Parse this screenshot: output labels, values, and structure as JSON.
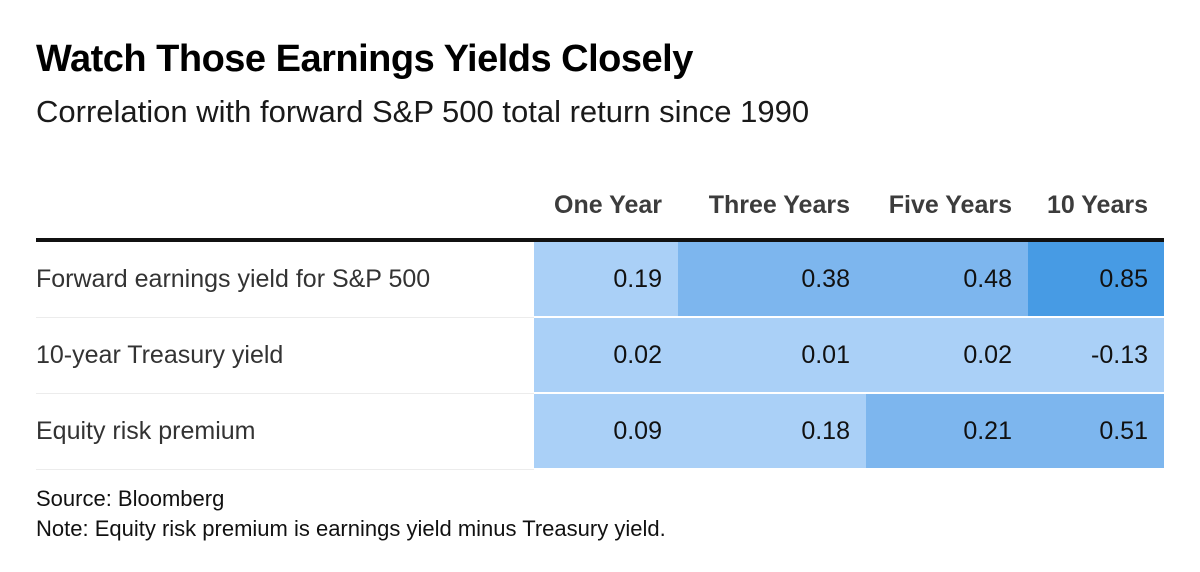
{
  "chart_data": {
    "type": "table",
    "title": "Watch Those Earnings Yields Closely",
    "subtitle": "Correlation with forward S&P 500 total return since 1990",
    "columns": [
      "One Year",
      "Three Years",
      "Five Years",
      "10 Years"
    ],
    "rows": [
      {
        "label": "Forward earnings yield for S&P 500",
        "values": [
          "0.19",
          "0.38",
          "0.48",
          "0.85"
        ]
      },
      {
        "label": "10-year Treasury yield",
        "values": [
          "0.02",
          "0.01",
          "0.02",
          "-0.13"
        ]
      },
      {
        "label": "Equity risk premium",
        "values": [
          "0.09",
          "0.18",
          "0.21",
          "0.51"
        ]
      }
    ],
    "source": "Source: Bloomberg",
    "note": "Note: Equity risk premium is earnings yield minus Treasury yield."
  },
  "colors": {
    "low": "#aad0f7",
    "mid": "#7db6ee",
    "high": "#479be4"
  }
}
